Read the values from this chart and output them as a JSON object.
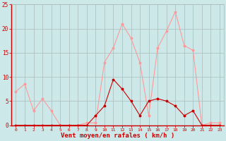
{
  "x": [
    0,
    1,
    2,
    3,
    4,
    5,
    6,
    7,
    8,
    9,
    10,
    11,
    12,
    13,
    14,
    15,
    16,
    17,
    18,
    19,
    20,
    21,
    22,
    23
  ],
  "rafales": [
    7,
    8.5,
    3,
    5.5,
    3,
    0,
    0,
    0,
    0.5,
    0.5,
    13,
    16,
    21,
    18,
    13,
    2,
    16,
    19.5,
    23.5,
    16.5,
    15.5,
    0,
    0.5,
    0.5
  ],
  "moyen": [
    0,
    0,
    0,
    0,
    0,
    0,
    0,
    0,
    0,
    2,
    4,
    9.5,
    7.5,
    5,
    2,
    5,
    5.5,
    5,
    4,
    2,
    3,
    0,
    0,
    0
  ],
  "bg_color": "#cce8e8",
  "grid_color": "#aabbbb",
  "line_color_rafales": "#ff9999",
  "line_color_moyen": "#cc0000",
  "marker_color_rafales": "#ff9999",
  "marker_color_moyen": "#cc0000",
  "xlabel": "Vent moyen/en rafales ( km/h )",
  "xlabel_color": "#cc0000",
  "tick_color": "#cc0000",
  "axis_line_color": "#cc0000",
  "ylim": [
    0,
    25
  ],
  "yticks": [
    0,
    5,
    10,
    15,
    20,
    25
  ]
}
